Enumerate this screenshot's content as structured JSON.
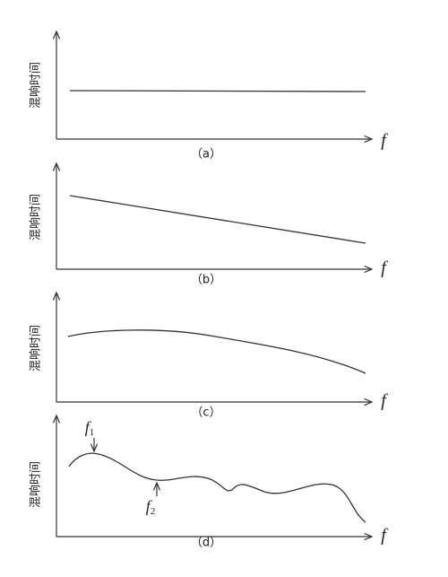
{
  "panels": [
    {
      "y_label": "混响时间",
      "x_label": "f",
      "caption": "（a）"
    },
    {
      "y_label": "混响时间",
      "x_label": "f",
      "caption": "（b）"
    },
    {
      "y_label": "混响时间",
      "x_label": "f",
      "caption": "（c）"
    },
    {
      "y_label": "混响时间",
      "x_label": "f",
      "caption": "（d）",
      "annotations": [
        {
          "base": "f",
          "sub": "1"
        },
        {
          "base": "f",
          "sub": "2"
        }
      ]
    }
  ]
}
